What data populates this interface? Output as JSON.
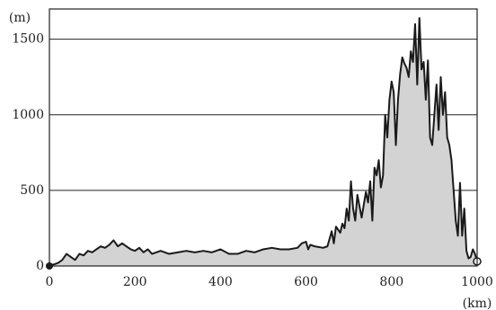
{
  "chart_data": {
    "type": "area",
    "y_label": "(m)",
    "x_label": "(km)",
    "x": [
      0,
      10,
      20,
      30,
      40,
      50,
      60,
      70,
      80,
      90,
      100,
      110,
      120,
      130,
      140,
      150,
      160,
      170,
      180,
      190,
      200,
      210,
      220,
      230,
      240,
      250,
      260,
      280,
      300,
      320,
      340,
      360,
      380,
      400,
      420,
      440,
      460,
      480,
      500,
      520,
      540,
      560,
      580,
      590,
      600,
      605,
      610,
      620,
      640,
      650,
      660,
      665,
      670,
      680,
      685,
      690,
      695,
      700,
      705,
      710,
      715,
      720,
      730,
      740,
      745,
      750,
      755,
      760,
      765,
      770,
      775,
      780,
      785,
      790,
      795,
      800,
      805,
      810,
      815,
      820,
      825,
      830,
      835,
      840,
      845,
      850,
      855,
      860,
      865,
      870,
      875,
      880,
      885,
      890,
      895,
      900,
      905,
      910,
      915,
      920,
      925,
      930,
      935,
      940,
      945,
      950,
      955,
      960,
      965,
      970,
      975,
      980,
      985,
      990,
      995,
      1000
    ],
    "values": [
      0,
      10,
      20,
      40,
      80,
      60,
      40,
      80,
      70,
      100,
      90,
      110,
      130,
      120,
      140,
      170,
      130,
      150,
      130,
      110,
      100,
      120,
      90,
      110,
      80,
      90,
      100,
      80,
      90,
      100,
      90,
      100,
      90,
      110,
      80,
      80,
      100,
      90,
      110,
      120,
      110,
      110,
      120,
      150,
      160,
      110,
      140,
      130,
      120,
      130,
      230,
      150,
      260,
      220,
      280,
      250,
      380,
      300,
      560,
      380,
      300,
      470,
      320,
      490,
      420,
      560,
      300,
      650,
      600,
      700,
      520,
      600,
      1000,
      850,
      1100,
      1220,
      1150,
      800,
      1100,
      1270,
      1380,
      1340,
      1310,
      1250,
      1420,
      1350,
      1600,
      1200,
      1640,
      1300,
      1350,
      1100,
      1360,
      850,
      800,
      1000,
      1200,
      900,
      1250,
      1000,
      1150,
      850,
      800,
      700,
      500,
      300,
      200,
      550,
      200,
      380,
      100,
      50,
      60,
      110,
      80,
      30
    ],
    "color": "#d3d3d3",
    "line_color": "#1a1a1a",
    "xlim": [
      0,
      1000
    ],
    "ylim": [
      0,
      1700
    ],
    "xticks": [
      0,
      200,
      400,
      600,
      800,
      1000
    ],
    "yticks": [
      0,
      500,
      1000,
      1500
    ],
    "grid": true
  }
}
